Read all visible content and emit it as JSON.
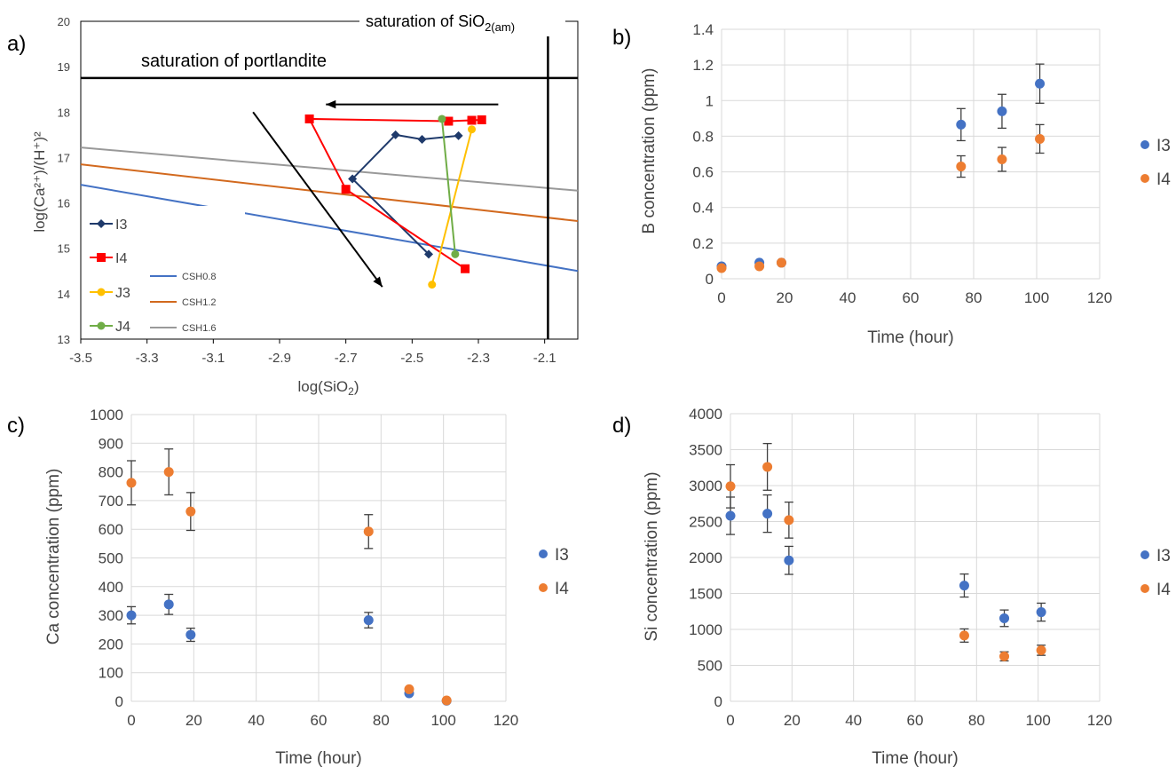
{
  "colors": {
    "I3": "#4472C4",
    "I4": "#ED7D31",
    "J3": "#FFC000",
    "J4": "#70AD47",
    "I3_line": "#1F3A6B",
    "I4_line": "#FF0000",
    "CSH0_8": "#4472C4",
    "CSH1_2": "#D2691E",
    "CSH1_6": "#999999",
    "grid": "#D9D9D9"
  },
  "chart_data": [
    {
      "panel": "a)",
      "type": "line",
      "xlabel": "log(SiO",
      "xlabel_sub": "2",
      "xlabel_end": ")",
      "ylabel": "log(Ca²⁺)/(H⁺)²",
      "xlim": [
        -3.5,
        -2.0
      ],
      "ylim": [
        13,
        20
      ],
      "x_ticks": [
        "-3.5",
        "-3.3",
        "-3.1",
        "-2.9",
        "-2.7",
        "-2.5",
        "-2.3",
        "-2.1"
      ],
      "y_ticks": [
        "13",
        "14",
        "15",
        "16",
        "17",
        "18",
        "19",
        "20"
      ],
      "annotations": {
        "portlandite": "saturation of portlandite",
        "silica_main": "saturation of SiO",
        "silica_sub": "2(am)"
      },
      "portlandite_y": 18.75,
      "silica_x": -2.09,
      "arrows": [
        {
          "from": [
            -2.24,
            18.17
          ],
          "to": [
            -2.76,
            18.17
          ]
        },
        {
          "from": [
            -2.98,
            18.0
          ],
          "to": [
            -2.59,
            14.15
          ]
        }
      ],
      "csh_lines": [
        {
          "name": "CSH0.8",
          "y_start": 16.4,
          "y_end": 14.5
        },
        {
          "name": "CSH1.2",
          "y_start": 16.85,
          "y_end": 15.6
        },
        {
          "name": "CSH1.6",
          "y_start": 17.22,
          "y_end": 16.27
        }
      ],
      "series": [
        {
          "name": "I3",
          "marker": "diamond",
          "points": [
            [
              -2.45,
              14.87
            ],
            [
              -2.68,
              16.53
            ],
            [
              -2.55,
              17.5
            ],
            [
              -2.47,
              17.4
            ],
            [
              -2.36,
              17.48
            ]
          ]
        },
        {
          "name": "I4",
          "marker": "square",
          "points": [
            [
              -2.34,
              14.55
            ],
            [
              -2.7,
              16.3
            ],
            [
              -2.81,
              17.85
            ],
            [
              -2.39,
              17.8
            ],
            [
              -2.32,
              17.82
            ],
            [
              -2.29,
              17.83
            ]
          ]
        },
        {
          "name": "J3",
          "marker": "circle",
          "points": [
            [
              -2.44,
              14.2
            ],
            [
              -2.32,
              17.62
            ]
          ]
        },
        {
          "name": "J4",
          "marker": "circle",
          "points": [
            [
              -2.37,
              14.87
            ],
            [
              -2.41,
              17.85
            ]
          ]
        }
      ],
      "legend": [
        "I3",
        "I4",
        "J3",
        "J4",
        "CSH0.8",
        "CSH1.2",
        "CSH1.6"
      ]
    },
    {
      "panel": "b)",
      "type": "scatter",
      "xlabel": "Time (hour)",
      "ylabel": "B concentration (ppm)",
      "xlim": [
        0,
        120
      ],
      "ylim": [
        0,
        1.4
      ],
      "x_ticks": [
        "0",
        "20",
        "40",
        "60",
        "80",
        "100",
        "120"
      ],
      "y_ticks": [
        "0",
        "0.2",
        "0.4",
        "0.6",
        "0.8",
        "1",
        "1.2",
        "1.4"
      ],
      "series": [
        {
          "name": "I3",
          "x": [
            0,
            12,
            19,
            76,
            89,
            101
          ],
          "y": [
            0.07,
            0.09,
            0.09,
            0.865,
            0.94,
            1.095
          ],
          "err": [
            0,
            0,
            0,
            0.09,
            0.095,
            0.11
          ]
        },
        {
          "name": "I4",
          "x": [
            0,
            12,
            19,
            76,
            89,
            101
          ],
          "y": [
            0.06,
            0.07,
            0.09,
            0.63,
            0.67,
            0.785
          ],
          "err": [
            0,
            0,
            0,
            0.06,
            0.067,
            0.08
          ]
        }
      ],
      "legend": [
        "I3",
        "I4"
      ]
    },
    {
      "panel": "c)",
      "type": "scatter",
      "xlabel": "Time (hour)",
      "ylabel": "Ca concentration (ppm)",
      "xlim": [
        0,
        120
      ],
      "ylim": [
        0,
        1000
      ],
      "x_ticks": [
        "0",
        "20",
        "40",
        "60",
        "80",
        "100",
        "120"
      ],
      "y_ticks": [
        "0",
        "100",
        "200",
        "300",
        "400",
        "500",
        "600",
        "700",
        "800",
        "900",
        "1000"
      ],
      "series": [
        {
          "name": "I3",
          "x": [
            0,
            12,
            19,
            76,
            89,
            101
          ],
          "y": [
            300,
            338,
            232,
            283,
            28,
            2
          ],
          "err": [
            30,
            35,
            23,
            27,
            0,
            0
          ]
        },
        {
          "name": "I4",
          "x": [
            0,
            12,
            19,
            76,
            89,
            101
          ],
          "y": [
            762,
            800,
            662,
            592,
            42,
            3
          ],
          "err": [
            77,
            80,
            66,
            59,
            0,
            0
          ]
        }
      ],
      "legend": [
        "I3",
        "I4"
      ]
    },
    {
      "panel": "d)",
      "type": "scatter",
      "xlabel": "Time (hour)",
      "ylabel": "Si concentration (ppm)",
      "xlim": [
        0,
        120
      ],
      "ylim": [
        0,
        4000
      ],
      "x_ticks": [
        "0",
        "20",
        "40",
        "60",
        "80",
        "100",
        "120"
      ],
      "y_ticks": [
        "0",
        "500",
        "1000",
        "1500",
        "2000",
        "2500",
        "3000",
        "3500",
        "4000"
      ],
      "series": [
        {
          "name": "I3",
          "x": [
            0,
            12,
            19,
            76,
            89,
            101
          ],
          "y": [
            2580,
            2610,
            1960,
            1610,
            1155,
            1240
          ],
          "err": [
            260,
            260,
            195,
            160,
            115,
            125
          ]
        },
        {
          "name": "I4",
          "x": [
            0,
            12,
            19,
            76,
            89,
            101
          ],
          "y": [
            2990,
            3260,
            2520,
            915,
            625,
            710
          ],
          "err": [
            300,
            325,
            250,
            92,
            63,
            70
          ]
        }
      ],
      "legend": [
        "I3",
        "I4"
      ]
    }
  ]
}
